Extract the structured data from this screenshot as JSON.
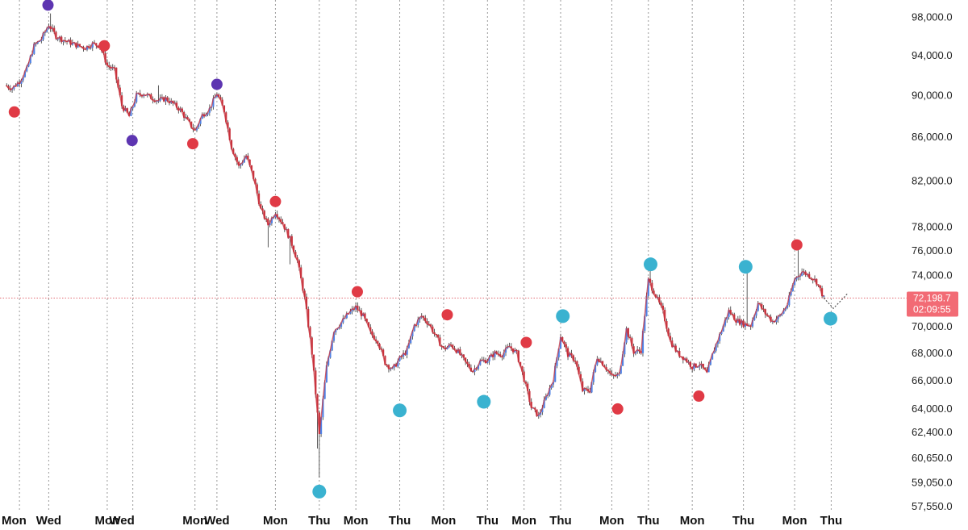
{
  "chart_data": {
    "type": "candlestick-line",
    "ylim": [
      57550,
      99500
    ],
    "y_scale": "log",
    "yticks": [
      {
        "label": "98,000.0",
        "value": 98000
      },
      {
        "label": "94,000.0",
        "value": 94000
      },
      {
        "label": "90,000.0",
        "value": 90000
      },
      {
        "label": "86,000.0",
        "value": 86000
      },
      {
        "label": "82,000.0",
        "value": 82000
      },
      {
        "label": "78,000.0",
        "value": 78000
      },
      {
        "label": "76,000.0",
        "value": 76000
      },
      {
        "label": "74,000.0",
        "value": 74000
      },
      {
        "label": "70,000.0",
        "value": 70000
      },
      {
        "label": "68,000.0",
        "value": 68000
      },
      {
        "label": "66,000.0",
        "value": 66000
      },
      {
        "label": "64,000.0",
        "value": 64000
      },
      {
        "label": "62,400.0",
        "value": 62400
      },
      {
        "label": "60,650.0",
        "value": 60650
      },
      {
        "label": "59,050.0",
        "value": 59050
      },
      {
        "label": "57,550.0",
        "value": 57550
      }
    ],
    "xticks": [
      {
        "label": "Mon",
        "t": 2
      },
      {
        "label": "Wed",
        "t": 6
      },
      {
        "label": "Mon",
        "t": 14
      },
      {
        "label": "Wed",
        "t": 16
      },
      {
        "label": "Mon",
        "t": 26
      },
      {
        "label": "Wed",
        "t": 29
      },
      {
        "label": "Mon",
        "t": 37
      },
      {
        "label": "Thu",
        "t": 43
      },
      {
        "label": "Mon",
        "t": 48
      },
      {
        "label": "Thu",
        "t": 54
      },
      {
        "label": "Mon",
        "t": 60
      },
      {
        "label": "Thu",
        "t": 66
      },
      {
        "label": "Mon",
        "t": 71
      },
      {
        "label": "Thu",
        "t": 76
      },
      {
        "label": "Mon",
        "t": 83
      },
      {
        "label": "Thu",
        "t": 88
      },
      {
        "label": "Mon",
        "t": 94
      },
      {
        "label": "Thu",
        "t": 101
      },
      {
        "label": "Mon",
        "t": 108
      },
      {
        "label": "Thu",
        "t": 113
      }
    ],
    "gridline_t": [
      2,
      6,
      14,
      17.5,
      26,
      29,
      37,
      43,
      48,
      54,
      60,
      66,
      71,
      76,
      83,
      88,
      94,
      101,
      108,
      113
    ],
    "t_range": [
      0,
      122
    ],
    "price_path": [
      [
        0,
        91000
      ],
      [
        1,
        90700
      ],
      [
        2,
        91400
      ],
      [
        3,
        92600
      ],
      [
        4,
        95000
      ],
      [
        5,
        95700
      ],
      [
        6,
        97200
      ],
      [
        7,
        96000
      ],
      [
        8,
        95600
      ],
      [
        9,
        95300
      ],
      [
        10,
        95000
      ],
      [
        11,
        94800
      ],
      [
        12,
        95200
      ],
      [
        13,
        95000
      ],
      [
        14,
        93000
      ],
      [
        15,
        92500
      ],
      [
        16,
        89000
      ],
      [
        17,
        88000
      ],
      [
        18,
        90000
      ],
      [
        19,
        90200
      ],
      [
        20,
        89800
      ],
      [
        21,
        89500
      ],
      [
        22,
        89700
      ],
      [
        23,
        89200
      ],
      [
        24,
        88600
      ],
      [
        25,
        87500
      ],
      [
        26,
        86600
      ],
      [
        27,
        88100
      ],
      [
        28,
        88700
      ],
      [
        29,
        90200
      ],
      [
        30,
        88500
      ],
      [
        31,
        85100
      ],
      [
        32,
        83300
      ],
      [
        33,
        84300
      ],
      [
        34,
        82300
      ],
      [
        35,
        79500
      ],
      [
        36,
        78200
      ],
      [
        37,
        79300
      ],
      [
        38,
        78300
      ],
      [
        39,
        77000
      ],
      [
        40,
        75200
      ],
      [
        41,
        72200
      ],
      [
        42,
        68000
      ],
      [
        43,
        62200
      ],
      [
        44,
        67000
      ],
      [
        45,
        69700
      ],
      [
        46,
        70300
      ],
      [
        47,
        71000
      ],
      [
        48,
        71500
      ],
      [
        49,
        70800
      ],
      [
        50,
        69500
      ],
      [
        51,
        68900
      ],
      [
        52,
        67300
      ],
      [
        53,
        66800
      ],
      [
        54,
        67600
      ],
      [
        55,
        68200
      ],
      [
        56,
        70100
      ],
      [
        57,
        70800
      ],
      [
        58,
        70200
      ],
      [
        59,
        69200
      ],
      [
        60,
        68300
      ],
      [
        61,
        68600
      ],
      [
        62,
        68100
      ],
      [
        63,
        67300
      ],
      [
        64,
        66700
      ],
      [
        65,
        67400
      ],
      [
        66,
        67500
      ],
      [
        67,
        68000
      ],
      [
        68,
        67900
      ],
      [
        69,
        68500
      ],
      [
        70,
        68000
      ],
      [
        71,
        66100
      ],
      [
        72,
        64100
      ],
      [
        73,
        63500
      ],
      [
        74,
        64800
      ],
      [
        75,
        66100
      ],
      [
        76,
        69300
      ],
      [
        77,
        67900
      ],
      [
        78,
        67500
      ],
      [
        79,
        65300
      ],
      [
        80,
        65300
      ],
      [
        81,
        67700
      ],
      [
        82,
        67100
      ],
      [
        83,
        66300
      ],
      [
        84,
        66400
      ],
      [
        85,
        69800
      ],
      [
        86,
        68100
      ],
      [
        87,
        68200
      ],
      [
        88,
        73600
      ],
      [
        89,
        72400
      ],
      [
        90,
        71100
      ],
      [
        91,
        68900
      ],
      [
        92,
        68000
      ],
      [
        93,
        67600
      ],
      [
        94,
        67000
      ],
      [
        95,
        67200
      ],
      [
        96,
        66500
      ],
      [
        97,
        68300
      ],
      [
        98,
        69700
      ],
      [
        99,
        71200
      ],
      [
        100,
        70500
      ],
      [
        101,
        70200
      ],
      [
        102,
        70100
      ],
      [
        103,
        71800
      ],
      [
        104,
        71000
      ],
      [
        105,
        70400
      ],
      [
        106,
        70800
      ],
      [
        107,
        71700
      ],
      [
        108,
        73700
      ],
      [
        109,
        74300
      ],
      [
        110,
        74000
      ],
      [
        111,
        73500
      ],
      [
        112,
        72200
      ]
    ],
    "forecast_path": [
      [
        112,
        72200
      ],
      [
        113.3,
        71400
      ],
      [
        114.5,
        72100
      ],
      [
        115.3,
        72600
      ]
    ],
    "markers": [
      {
        "t": 1.3,
        "price": 88400,
        "color": "#e03a45"
      },
      {
        "t": 5.9,
        "price": 99300,
        "color": "#5d35b1"
      },
      {
        "t": 13.6,
        "price": 95000,
        "color": "#e03a45"
      },
      {
        "t": 17.4,
        "price": 85700,
        "color": "#5d35b1"
      },
      {
        "t": 25.7,
        "price": 85400,
        "color": "#e03a45"
      },
      {
        "t": 29.0,
        "price": 91100,
        "color": "#5d35b1"
      },
      {
        "t": 37.0,
        "price": 80200,
        "color": "#e03a45"
      },
      {
        "t": 43.0,
        "price": 58500,
        "color": "#3ab2d0"
      },
      {
        "t": 48.2,
        "price": 72700,
        "color": "#e03a45"
      },
      {
        "t": 54.0,
        "price": 63900,
        "color": "#3ab2d0"
      },
      {
        "t": 60.5,
        "price": 70900,
        "color": "#e03a45"
      },
      {
        "t": 65.5,
        "price": 64500,
        "color": "#3ab2d0"
      },
      {
        "t": 71.3,
        "price": 68800,
        "color": "#e03a45"
      },
      {
        "t": 76.3,
        "price": 70800,
        "color": "#3ab2d0"
      },
      {
        "t": 83.8,
        "price": 64000,
        "color": "#e03a45"
      },
      {
        "t": 88.3,
        "price": 74900,
        "color": "#3ab2d0"
      },
      {
        "t": 94.9,
        "price": 64900,
        "color": "#e03a45"
      },
      {
        "t": 101.3,
        "price": 74700,
        "color": "#3ab2d0"
      },
      {
        "t": 108.3,
        "price": 76500,
        "color": "#e03a45"
      },
      {
        "t": 112.9,
        "price": 70600,
        "color": "#3ab2d0"
      }
    ],
    "current_price": 72198.7,
    "current_price_label": "72,198.7",
    "countdown_label": "02:09:55",
    "colors": {
      "up": "#4e82e6",
      "down": "#c8323c",
      "wick": "#333333",
      "grid": "#9a9a9a",
      "price_line": "#e26b73",
      "badge": "#f26b75"
    }
  }
}
